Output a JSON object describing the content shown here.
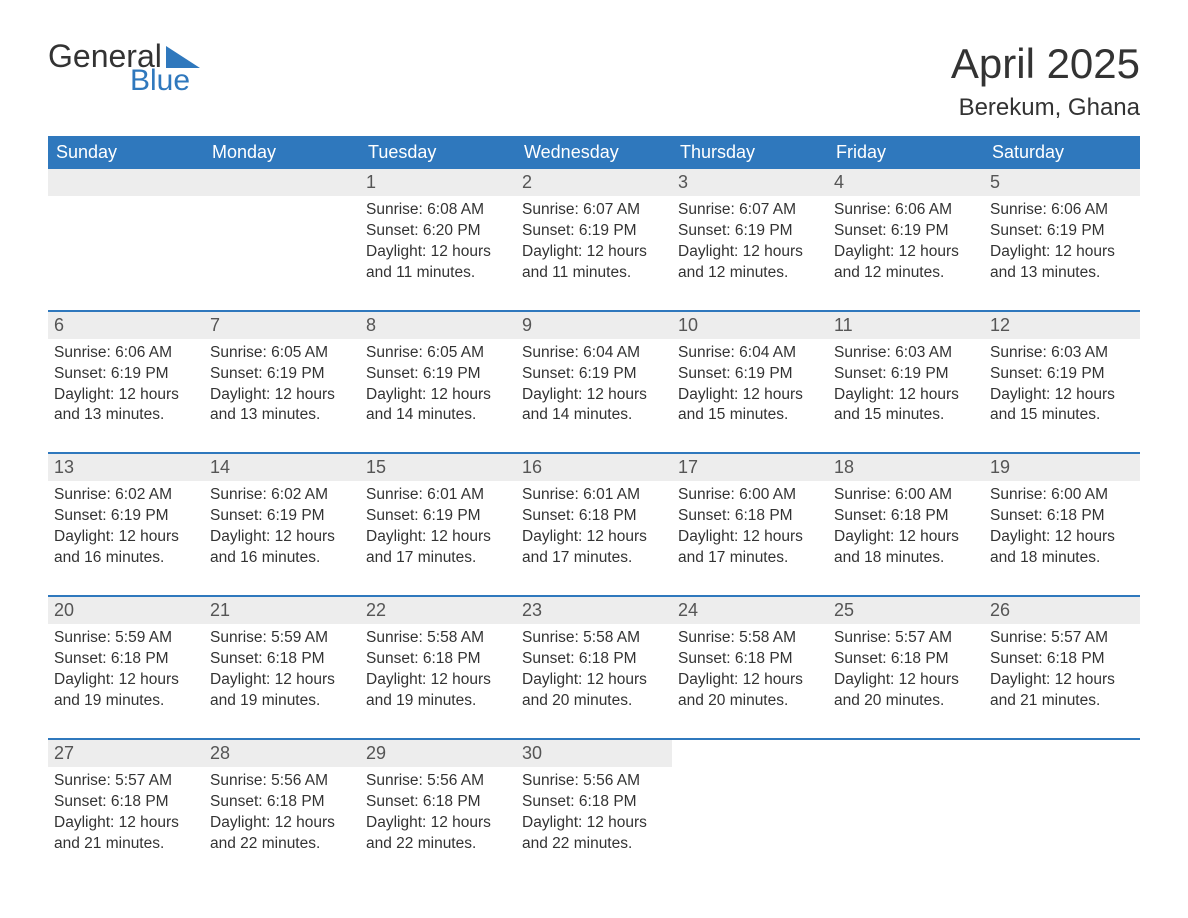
{
  "logo": {
    "text1": "General",
    "text2": "Blue"
  },
  "title": {
    "month_year": "April 2025",
    "location": "Berekum, Ghana"
  },
  "colors": {
    "header_bg": "#2f78bd",
    "header_text": "#ffffff",
    "daynum_bg": "#ededed",
    "daynum_text": "#555555",
    "body_text": "#333333",
    "week_border": "#2f78bd",
    "logo_blue": "#2f78bd"
  },
  "days_of_week": [
    "Sunday",
    "Monday",
    "Tuesday",
    "Wednesday",
    "Thursday",
    "Friday",
    "Saturday"
  ],
  "weeks": [
    [
      {
        "n": "",
        "sr": "",
        "ss": "",
        "dl": ""
      },
      {
        "n": "",
        "sr": "",
        "ss": "",
        "dl": ""
      },
      {
        "n": "1",
        "sr": "Sunrise: 6:08 AM",
        "ss": "Sunset: 6:20 PM",
        "dl": "Daylight: 12 hours and 11 minutes."
      },
      {
        "n": "2",
        "sr": "Sunrise: 6:07 AM",
        "ss": "Sunset: 6:19 PM",
        "dl": "Daylight: 12 hours and 11 minutes."
      },
      {
        "n": "3",
        "sr": "Sunrise: 6:07 AM",
        "ss": "Sunset: 6:19 PM",
        "dl": "Daylight: 12 hours and 12 minutes."
      },
      {
        "n": "4",
        "sr": "Sunrise: 6:06 AM",
        "ss": "Sunset: 6:19 PM",
        "dl": "Daylight: 12 hours and 12 minutes."
      },
      {
        "n": "5",
        "sr": "Sunrise: 6:06 AM",
        "ss": "Sunset: 6:19 PM",
        "dl": "Daylight: 12 hours and 13 minutes."
      }
    ],
    [
      {
        "n": "6",
        "sr": "Sunrise: 6:06 AM",
        "ss": "Sunset: 6:19 PM",
        "dl": "Daylight: 12 hours and 13 minutes."
      },
      {
        "n": "7",
        "sr": "Sunrise: 6:05 AM",
        "ss": "Sunset: 6:19 PM",
        "dl": "Daylight: 12 hours and 13 minutes."
      },
      {
        "n": "8",
        "sr": "Sunrise: 6:05 AM",
        "ss": "Sunset: 6:19 PM",
        "dl": "Daylight: 12 hours and 14 minutes."
      },
      {
        "n": "9",
        "sr": "Sunrise: 6:04 AM",
        "ss": "Sunset: 6:19 PM",
        "dl": "Daylight: 12 hours and 14 minutes."
      },
      {
        "n": "10",
        "sr": "Sunrise: 6:04 AM",
        "ss": "Sunset: 6:19 PM",
        "dl": "Daylight: 12 hours and 15 minutes."
      },
      {
        "n": "11",
        "sr": "Sunrise: 6:03 AM",
        "ss": "Sunset: 6:19 PM",
        "dl": "Daylight: 12 hours and 15 minutes."
      },
      {
        "n": "12",
        "sr": "Sunrise: 6:03 AM",
        "ss": "Sunset: 6:19 PM",
        "dl": "Daylight: 12 hours and 15 minutes."
      }
    ],
    [
      {
        "n": "13",
        "sr": "Sunrise: 6:02 AM",
        "ss": "Sunset: 6:19 PM",
        "dl": "Daylight: 12 hours and 16 minutes."
      },
      {
        "n": "14",
        "sr": "Sunrise: 6:02 AM",
        "ss": "Sunset: 6:19 PM",
        "dl": "Daylight: 12 hours and 16 minutes."
      },
      {
        "n": "15",
        "sr": "Sunrise: 6:01 AM",
        "ss": "Sunset: 6:19 PM",
        "dl": "Daylight: 12 hours and 17 minutes."
      },
      {
        "n": "16",
        "sr": "Sunrise: 6:01 AM",
        "ss": "Sunset: 6:18 PM",
        "dl": "Daylight: 12 hours and 17 minutes."
      },
      {
        "n": "17",
        "sr": "Sunrise: 6:00 AM",
        "ss": "Sunset: 6:18 PM",
        "dl": "Daylight: 12 hours and 17 minutes."
      },
      {
        "n": "18",
        "sr": "Sunrise: 6:00 AM",
        "ss": "Sunset: 6:18 PM",
        "dl": "Daylight: 12 hours and 18 minutes."
      },
      {
        "n": "19",
        "sr": "Sunrise: 6:00 AM",
        "ss": "Sunset: 6:18 PM",
        "dl": "Daylight: 12 hours and 18 minutes."
      }
    ],
    [
      {
        "n": "20",
        "sr": "Sunrise: 5:59 AM",
        "ss": "Sunset: 6:18 PM",
        "dl": "Daylight: 12 hours and 19 minutes."
      },
      {
        "n": "21",
        "sr": "Sunrise: 5:59 AM",
        "ss": "Sunset: 6:18 PM",
        "dl": "Daylight: 12 hours and 19 minutes."
      },
      {
        "n": "22",
        "sr": "Sunrise: 5:58 AM",
        "ss": "Sunset: 6:18 PM",
        "dl": "Daylight: 12 hours and 19 minutes."
      },
      {
        "n": "23",
        "sr": "Sunrise: 5:58 AM",
        "ss": "Sunset: 6:18 PM",
        "dl": "Daylight: 12 hours and 20 minutes."
      },
      {
        "n": "24",
        "sr": "Sunrise: 5:58 AM",
        "ss": "Sunset: 6:18 PM",
        "dl": "Daylight: 12 hours and 20 minutes."
      },
      {
        "n": "25",
        "sr": "Sunrise: 5:57 AM",
        "ss": "Sunset: 6:18 PM",
        "dl": "Daylight: 12 hours and 20 minutes."
      },
      {
        "n": "26",
        "sr": "Sunrise: 5:57 AM",
        "ss": "Sunset: 6:18 PM",
        "dl": "Daylight: 12 hours and 21 minutes."
      }
    ],
    [
      {
        "n": "27",
        "sr": "Sunrise: 5:57 AM",
        "ss": "Sunset: 6:18 PM",
        "dl": "Daylight: 12 hours and 21 minutes."
      },
      {
        "n": "28",
        "sr": "Sunrise: 5:56 AM",
        "ss": "Sunset: 6:18 PM",
        "dl": "Daylight: 12 hours and 22 minutes."
      },
      {
        "n": "29",
        "sr": "Sunrise: 5:56 AM",
        "ss": "Sunset: 6:18 PM",
        "dl": "Daylight: 12 hours and 22 minutes."
      },
      {
        "n": "30",
        "sr": "Sunrise: 5:56 AM",
        "ss": "Sunset: 6:18 PM",
        "dl": "Daylight: 12 hours and 22 minutes."
      },
      {
        "n": "",
        "sr": "",
        "ss": "",
        "dl": ""
      },
      {
        "n": "",
        "sr": "",
        "ss": "",
        "dl": ""
      },
      {
        "n": "",
        "sr": "",
        "ss": "",
        "dl": ""
      }
    ]
  ]
}
